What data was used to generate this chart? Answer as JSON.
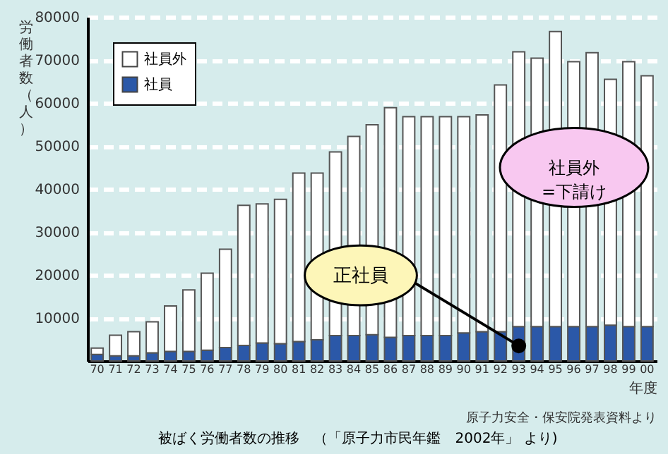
{
  "chart_data": {
    "type": "bar",
    "stacked": true,
    "title": "被ばく労働者数の推移　（「原子力市民年鑑　2002年」 より)",
    "xlabel": "年度",
    "ylabel": "労働者数（人）",
    "categories": [
      "70",
      "71",
      "72",
      "73",
      "74",
      "75",
      "76",
      "77",
      "78",
      "79",
      "80",
      "81",
      "82",
      "83",
      "84",
      "85",
      "86",
      "87",
      "88",
      "89",
      "90",
      "91",
      "92",
      "93",
      "94",
      "95",
      "96",
      "97",
      "98",
      "99",
      "00"
    ],
    "series": [
      {
        "name": "社員",
        "color": "#2b58a8",
        "values": [
          1500,
          1200,
          1200,
          1900,
          2200,
          2200,
          2500,
          3100,
          3600,
          4200,
          4000,
          4500,
          4900,
          5900,
          5900,
          6100,
          5500,
          5900,
          5900,
          5900,
          6500,
          6800,
          6800,
          8000,
          8000,
          8000,
          8000,
          8000,
          8300,
          8000,
          8000
        ]
      },
      {
        "name": "社員外",
        "color": "#ffffff",
        "values": [
          1500,
          4800,
          5600,
          7200,
          10600,
          14300,
          17900,
          22900,
          32600,
          32300,
          33600,
          39200,
          38800,
          42700,
          46300,
          48800,
          53400,
          50900,
          50900,
          50900,
          50300,
          50400,
          57400,
          63900,
          62400,
          68600,
          61600,
          63700,
          57200,
          61600,
          58300
        ]
      }
    ],
    "ylim": [
      0,
      80000
    ],
    "yticks": [
      10000,
      20000,
      30000,
      40000,
      50000,
      60000,
      70000,
      80000
    ],
    "grid": "y",
    "legend": "top left",
    "annotations": [
      {
        "text": "正社員",
        "x": "93",
        "y": 3500
      },
      {
        "text": "社員外\n=下請け",
        "x": "96",
        "y": 45000
      },
      "原子力安全・保安院発表資料より"
    ]
  }
}
